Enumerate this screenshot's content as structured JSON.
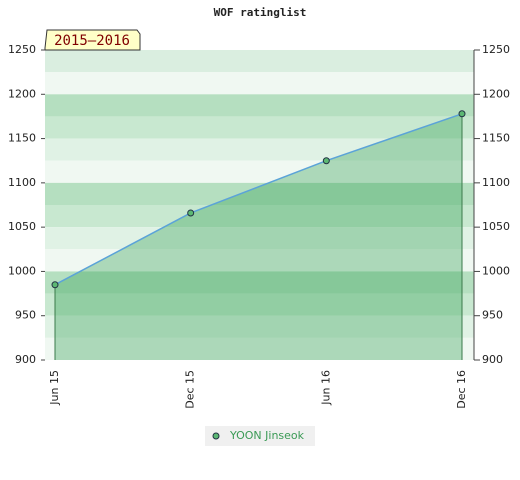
{
  "chart_data": {
    "type": "area",
    "title": "WOF ratinglist",
    "subtitle": "2015–2016",
    "categories": [
      "Jun 15",
      "Dec 15",
      "Jun 16",
      "Dec 16"
    ],
    "series": [
      {
        "name": "YOON Jinseok",
        "color": "#5ba3d8",
        "values": [
          985,
          1066,
          1125,
          1178
        ]
      }
    ],
    "ylim": [
      900,
      1250
    ],
    "yticks": [
      900,
      950,
      1000,
      1050,
      1100,
      1150,
      1200,
      1250
    ]
  }
}
